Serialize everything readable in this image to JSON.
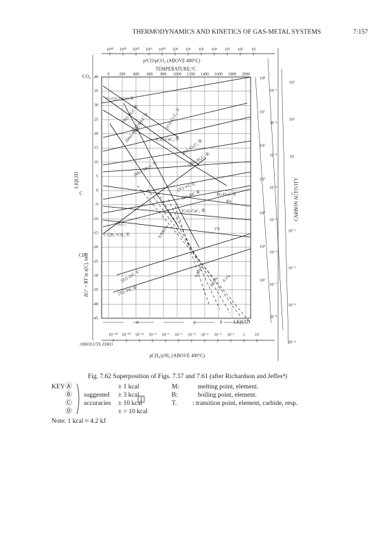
{
  "header": {
    "title": "THERMODYNAMICS AND KINETICS OF GAS-METAL SYSTEMS",
    "page": "7:157"
  },
  "figure": {
    "top_axis_label": "p²CO/pCO₂ (ABOVE 400°C)",
    "top_scale": [
      "10⁴⁰",
      "10³⁰",
      "10²⁰",
      "10¹⁶",
      "10¹⁰",
      "10⁸",
      "10⁶",
      "10⁵",
      "10⁴",
      "10³",
      "10²",
      "10"
    ],
    "temperature_label": "TEMPERATURE,°C",
    "temperature_ticks": [
      0,
      200,
      400,
      600,
      800,
      1000,
      1200,
      1400,
      1600,
      1800,
      2000
    ],
    "y_ticks": [
      40,
      35,
      30,
      25,
      20,
      15,
      10,
      5,
      0,
      -5,
      -10,
      -15,
      -20,
      -25,
      -30,
      -35,
      -40,
      -45
    ],
    "y_axis_label": "ΔG° = RT ln a[C], kcal",
    "left_labels": [
      "CO₂",
      "C",
      "CH₄",
      "LIQUID"
    ],
    "ratio_scale": [
      "10⁸",
      "10⁷",
      "10⁶",
      "10⁵",
      "10⁴",
      "10³",
      "10²"
    ],
    "pressure_scale": [
      "10⁻¹",
      "10⁻²",
      "10⁻³",
      "10⁻⁴",
      "10⁻⁵",
      "10⁻⁶",
      "10⁻⁷",
      "10⁻⁸"
    ],
    "activity_scale": [
      "10³",
      "10²",
      "10",
      "1",
      "10⁻¹",
      "10⁻²",
      "10⁻³",
      "10⁻⁴"
    ],
    "activity_label": "CARBON ACTIVITY",
    "phase_labels": [
      "α",
      "γ",
      "δ",
      "LIQUID"
    ],
    "bottom_scale": [
      "10⁻⁵⁰",
      "10⁻²⁰",
      "10⁻¹²",
      "10⁻⁹",
      "10⁻⁶",
      "10⁻⁵",
      "10⁻⁴",
      "10⁻³",
      "10⁻²",
      "10⁻¹",
      "1",
      "10"
    ],
    "bottom_axis_label": "pCH₄/p²H₂ (ABOVE 400°C)",
    "absolute_zero": "ABSOLUTE ZERO",
    "reactions": [
      "C+CO₂=2CO Ⓐ",
      "[Ni]–Ni₃C Ⓑ",
      "[Co]–Co₃C Ⓑ",
      "[Mn]–Mn₃C Ⓒ",
      "[Cr]–Cr₃C₂ Ⓒ",
      "[Ca]–CaC₂ Ⓓ",
      "[Cr]–Cr₃C₂ Ⓑ",
      "[Al]–Al₄C₃ Ⓑ",
      "[Mo]–Mo₂C Ⓒ",
      "[V]–VC Ⓒ",
      "[Si]–SiC Ⓑ",
      "Fe–Fe₃C Ⓐ",
      "[Ca]–CaC₂ Ⓑ",
      "Al₄C₃",
      "C+2H₂=CH₄ Ⓐ",
      "[Zr]–ZrC Ⓒ",
      "[Ti]–TiC Ⓑ"
    ],
    "percent_labels": [
      "4%",
      "1%",
      "0.1%",
      "0.01%",
      "0.001%",
      "0.0001%"
    ]
  },
  "caption": "Fig. 7.62   Superposition of Figs. 7.57 and 7.61 (after Richardson and Jeffes⁴)",
  "key": {
    "label": "KEY",
    "rows": [
      {
        "symbol": "Ⓐ",
        "accuracy": "± 1 kcal",
        "abbr": "M:",
        "meaning": "melting point, element."
      },
      {
        "symbol": "Ⓑ",
        "note": "suggested",
        "accuracy": "± 3 kcal",
        "abbr": "B:",
        "meaning": "boiling point, element."
      },
      {
        "symbol": "Ⓒ",
        "note": "accuracies",
        "accuracy": "± 10 kcal",
        "abbr": "T.",
        "meaning": ": transition point, element, carbide, resp."
      },
      {
        "symbol": "Ⓓ",
        "accuracy": "± > 10 kcal"
      }
    ]
  },
  "note": "Note: 1 kcal ≈ 4.2 kJ"
}
